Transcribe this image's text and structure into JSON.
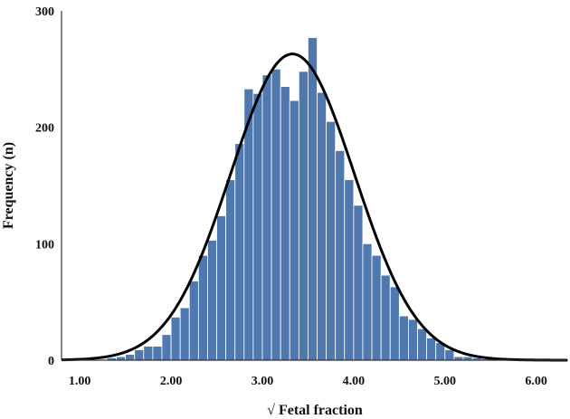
{
  "chart_data": {
    "type": "bar",
    "xlabel": "√ Fetal fraction",
    "ylabel": "Frequency (n)",
    "xlim": [
      0.8,
      6.35
    ],
    "ylim": [
      0,
      300
    ],
    "xticks": [
      "1.00",
      "2.00",
      "3.00",
      "4.00",
      "5.00",
      "6.00"
    ],
    "xtick_values": [
      1,
      2,
      3,
      4,
      5,
      6
    ],
    "yticks": [
      "0",
      "100",
      "200",
      "300"
    ],
    "ytick_values": [
      0,
      100,
      200,
      300
    ],
    "bin_width": 0.1,
    "bin_starts": [
      1.3,
      1.4,
      1.5,
      1.6,
      1.7,
      1.8,
      1.9,
      2.0,
      2.1,
      2.2,
      2.3,
      2.4,
      2.5,
      2.6,
      2.7,
      2.8,
      2.9,
      3.0,
      3.1,
      3.2,
      3.3,
      3.4,
      3.5,
      3.6,
      3.7,
      3.8,
      3.9,
      4.0,
      4.1,
      4.2,
      4.3,
      4.4,
      4.5,
      4.6,
      4.7,
      4.8,
      4.9,
      5.0,
      5.1,
      5.2,
      5.3,
      5.4
    ],
    "frequencies": [
      2,
      3,
      5,
      9,
      12,
      12,
      22,
      37,
      45,
      68,
      90,
      103,
      124,
      155,
      186,
      233,
      229,
      245,
      250,
      235,
      223,
      248,
      277,
      230,
      205,
      180,
      155,
      133,
      100,
      90,
      73,
      63,
      38,
      35,
      27,
      19,
      15,
      9,
      3,
      3,
      2,
      1
    ],
    "normal_curve": {
      "mean": 3.33,
      "sd": 0.68,
      "peak": 263
    },
    "bar_color": "#4f79ae",
    "bar_edge_color": "#ffffff",
    "curve_color": "#000000"
  }
}
